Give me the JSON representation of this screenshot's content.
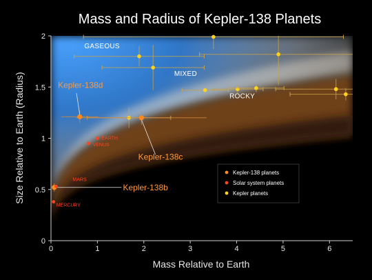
{
  "chart_data": {
    "type": "scatter",
    "title": "Mass and Radius of Kepler-138 Planets",
    "xlabel": "Mass Relative to Earth",
    "ylabel": "Size Relative to Earth (Radius)",
    "xlim": [
      0,
      6.5
    ],
    "ylim": [
      0,
      2
    ],
    "xticks": [
      "0",
      "1",
      "2",
      "3",
      "4",
      "5",
      "6"
    ],
    "yticks": [
      "0",
      "0.5",
      "1",
      "1.5",
      "2"
    ],
    "grid": false,
    "legend_position": "bottom-right",
    "regions": [
      "GASEOUS",
      "MIXED",
      "ROCKY"
    ],
    "series": [
      {
        "name": "Kepler-138 planets",
        "color": "#ff8a1f",
        "points": [
          {
            "label": "Kepler-138b",
            "x": 0.07,
            "y": 0.52
          },
          {
            "label": "Kepler-138c",
            "x": 1.95,
            "y": 1.2
          },
          {
            "label": "Kepler-138d",
            "x": 0.62,
            "y": 1.21
          }
        ]
      },
      {
        "name": "Solar system planets",
        "color": "#ff4422",
        "points": [
          {
            "label": "MERCURY",
            "x": 0.055,
            "y": 0.38
          },
          {
            "label": "MARS",
            "x": 0.11,
            "y": 0.53
          },
          {
            "label": "VENUS",
            "x": 0.81,
            "y": 0.95
          },
          {
            "label": "EARTH",
            "x": 1.0,
            "y": 1.0
          }
        ]
      },
      {
        "name": "Kepler planets",
        "color": "#ffd21f",
        "points": [
          {
            "x": 1.9,
            "y": 1.8,
            "xerr": 1.4,
            "yerr": 0.1
          },
          {
            "x": 2.2,
            "y": 1.69,
            "xerr": 1.1,
            "yerr": 0.22
          },
          {
            "x": 3.5,
            "y": 1.99,
            "xerr": 2.8,
            "yerr": 0.12
          },
          {
            "x": 4.9,
            "y": 1.82,
            "xerr": 1.7,
            "yerr": 0.3
          },
          {
            "x": 1.68,
            "y": 1.2,
            "xerr": 0.9,
            "yerr": 0.1
          },
          {
            "x": 3.32,
            "y": 1.47,
            "xerr": 0.5,
            "yerr": 0.04
          },
          {
            "x": 4.02,
            "y": 1.48,
            "xerr": 0.55,
            "yerr": 0.04
          },
          {
            "x": 4.42,
            "y": 1.49,
            "xerr": 0.6,
            "yerr": 0.04
          },
          {
            "x": 6.14,
            "y": 1.48,
            "xerr": 1.3,
            "yerr": 0.1
          },
          {
            "x": 6.35,
            "y": 1.43,
            "xerr": 1.2,
            "yerr": 0.06
          }
        ]
      }
    ]
  }
}
